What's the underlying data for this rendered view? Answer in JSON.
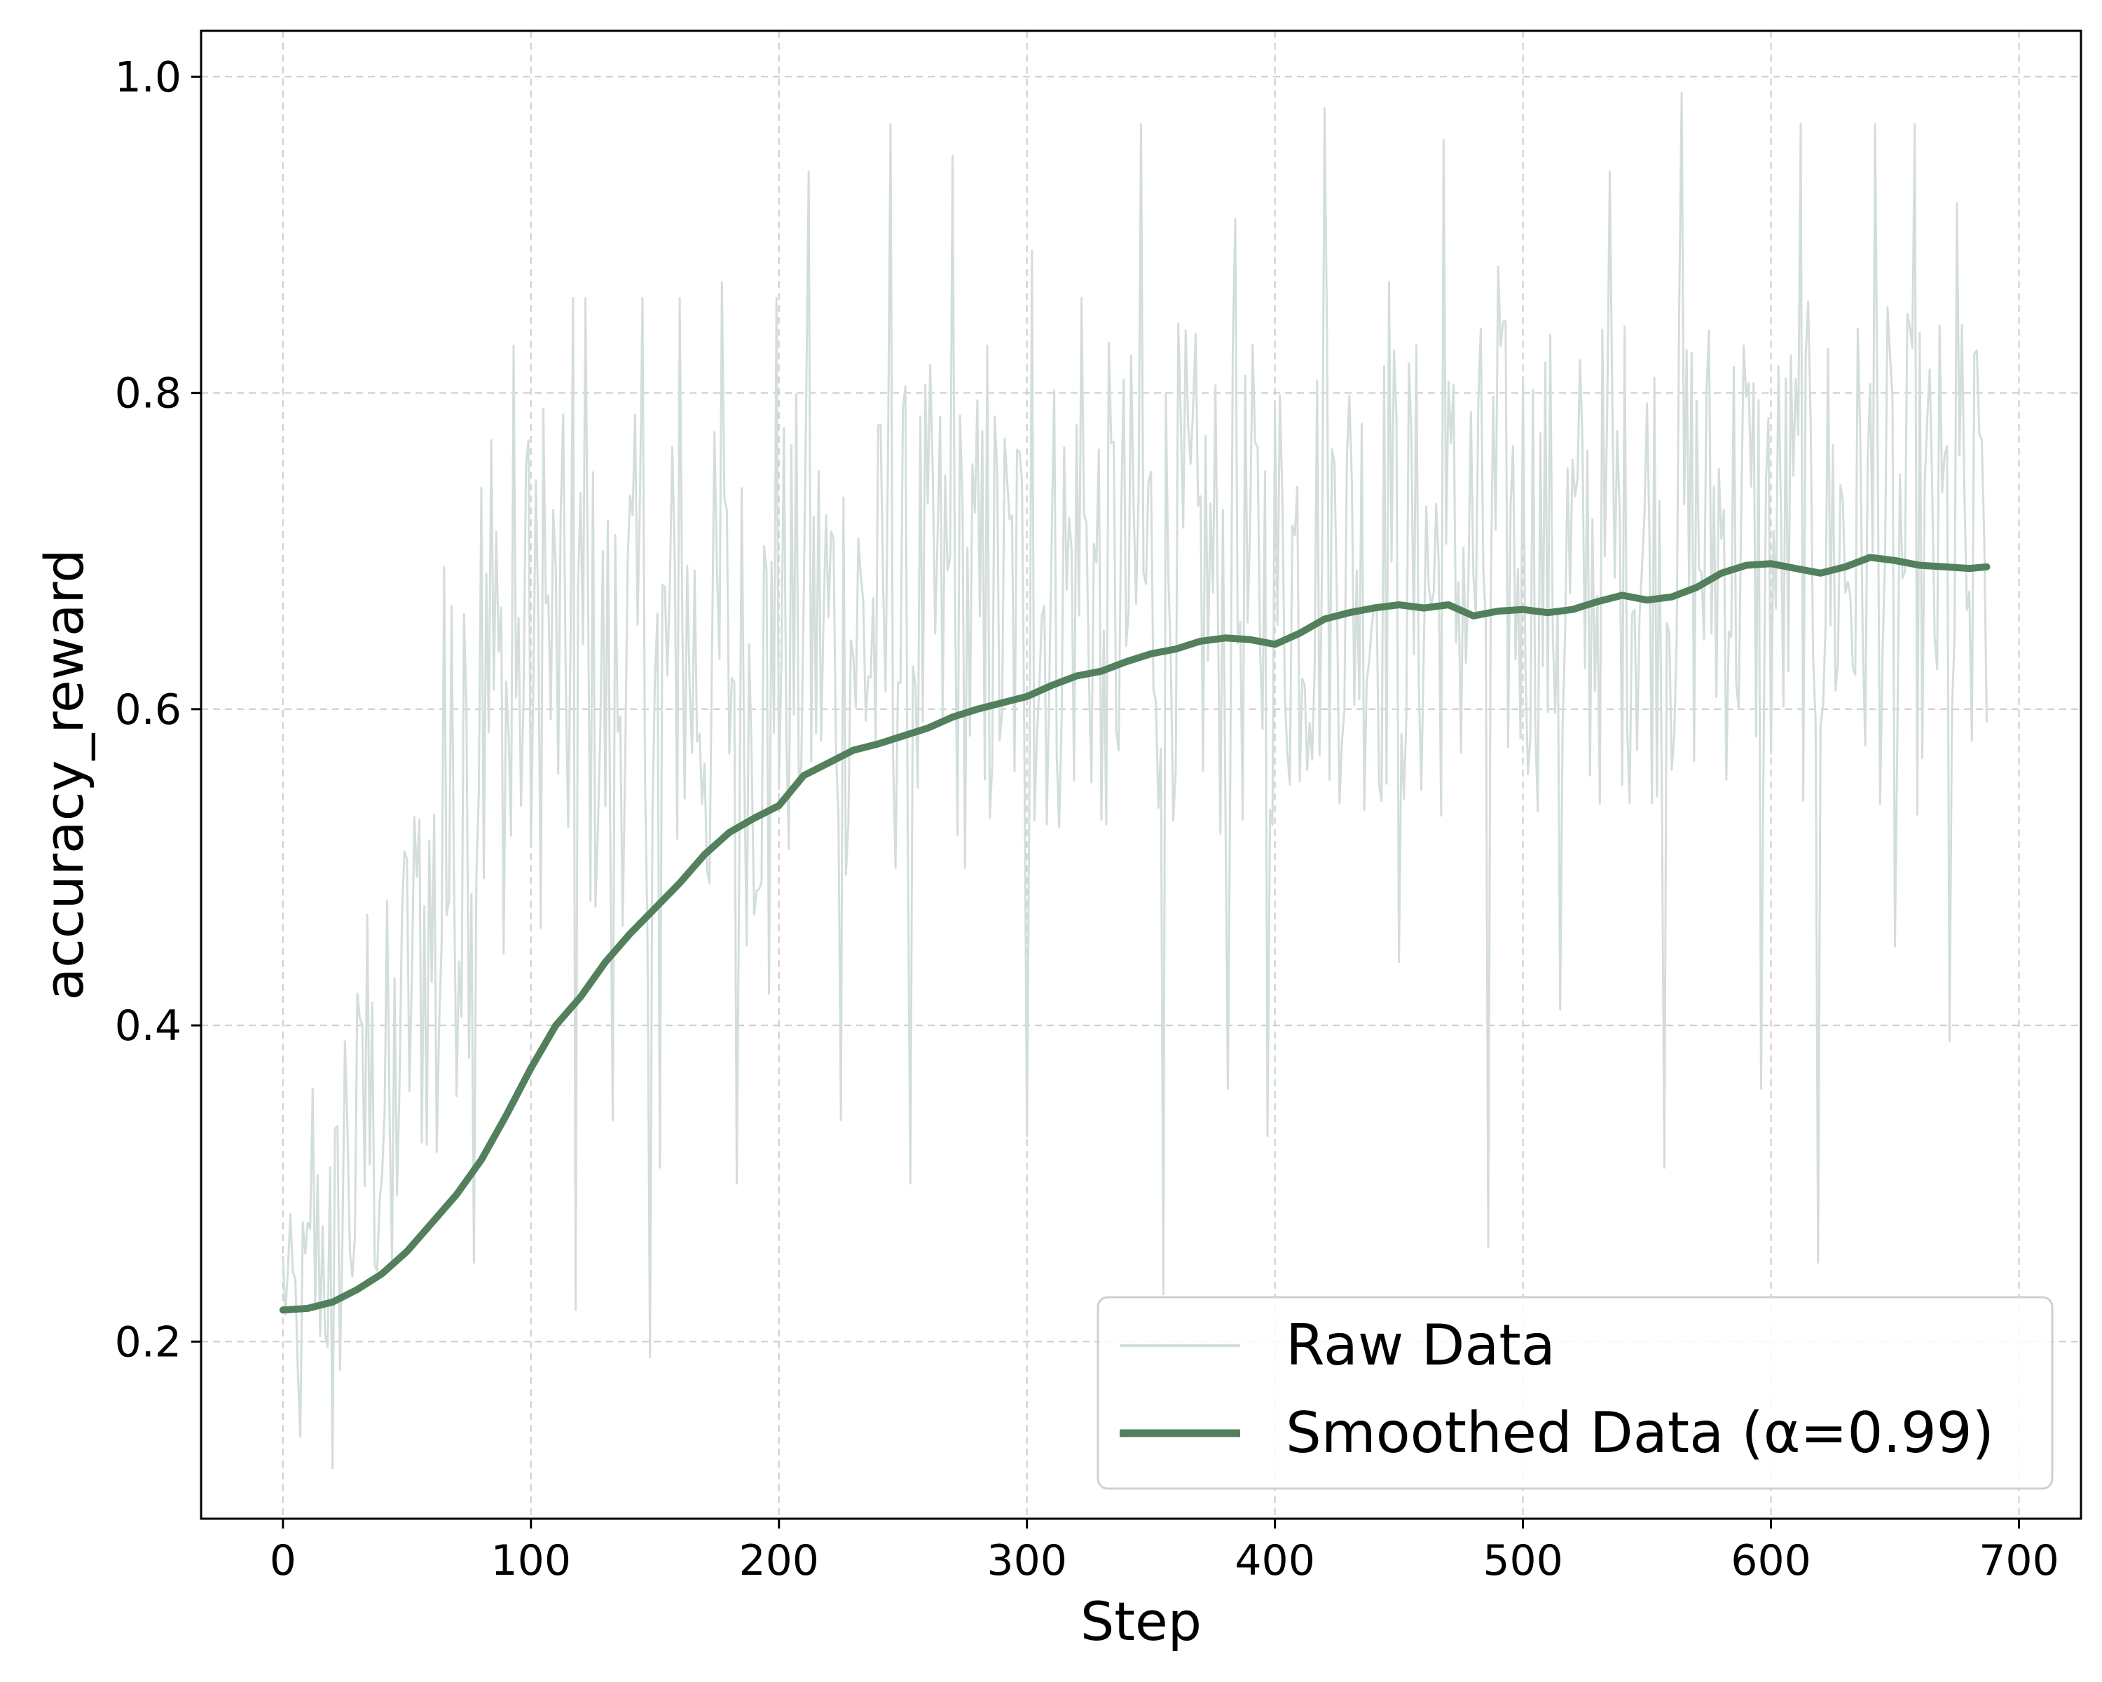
{
  "chart_data": {
    "type": "line",
    "xlabel": "Step",
    "ylabel": "accuracy_reward",
    "xlim": [
      -33,
      725
    ],
    "ylim": [
      0.088,
      1.029
    ],
    "xticks": [
      0,
      100,
      200,
      300,
      400,
      500,
      600,
      700
    ],
    "xtick_labels": [
      "0",
      "100",
      "200",
      "300",
      "400",
      "500",
      "600",
      "700"
    ],
    "yticks": [
      0.2,
      0.4,
      0.6,
      0.8,
      1.0
    ],
    "ytick_labels": [
      "0.2",
      "0.4",
      "0.6",
      "0.8",
      "1.0"
    ],
    "grid": true,
    "legend_position": "lower-right",
    "colors": {
      "raw": "#d3dedb",
      "smoothed": "#52805c",
      "grid": "#cccccc"
    },
    "series": [
      {
        "name": "Raw Data",
        "role": "raw",
        "anchors_x": [
          0,
          5,
          10,
          15,
          20,
          25,
          30,
          35,
          40,
          45,
          50,
          55,
          60,
          65,
          70,
          75,
          80,
          85,
          90,
          100,
          110,
          120,
          130,
          140,
          150,
          160,
          170,
          180,
          190,
          200,
          220,
          240,
          260,
          280,
          300,
          320,
          340,
          360,
          380,
          400,
          420,
          440,
          460,
          480,
          500,
          520,
          540,
          560,
          580,
          600,
          620,
          640,
          660,
          687
        ],
        "anchors_mean": [
          0.24,
          0.22,
          0.23,
          0.26,
          0.25,
          0.28,
          0.3,
          0.33,
          0.34,
          0.36,
          0.41,
          0.44,
          0.46,
          0.5,
          0.52,
          0.55,
          0.58,
          0.6,
          0.6,
          0.61,
          0.63,
          0.62,
          0.6,
          0.63,
          0.61,
          0.64,
          0.62,
          0.63,
          0.6,
          0.64,
          0.65,
          0.64,
          0.66,
          0.65,
          0.66,
          0.68,
          0.67,
          0.69,
          0.67,
          0.68,
          0.7,
          0.69,
          0.68,
          0.69,
          0.7,
          0.68,
          0.7,
          0.7,
          0.71,
          0.69,
          0.7,
          0.7,
          0.69,
          0.7
        ],
        "anchors_spread": [
          0.04,
          0.05,
          0.06,
          0.08,
          0.09,
          0.1,
          0.1,
          0.11,
          0.12,
          0.12,
          0.13,
          0.13,
          0.14,
          0.15,
          0.15,
          0.15,
          0.14,
          0.14,
          0.14,
          0.14,
          0.14,
          0.14,
          0.14,
          0.14,
          0.14,
          0.14,
          0.14,
          0.14,
          0.14,
          0.14,
          0.14,
          0.14,
          0.14,
          0.14,
          0.14,
          0.14,
          0.14,
          0.14,
          0.14,
          0.14,
          0.14,
          0.14,
          0.14,
          0.14,
          0.14,
          0.14,
          0.14,
          0.14,
          0.14,
          0.14,
          0.14,
          0.14,
          0.14,
          0.14
        ],
        "extremes": [
          [
            7,
            0.14
          ],
          [
            12,
            0.36
          ],
          [
            20,
            0.12
          ],
          [
            25,
            0.39
          ],
          [
            30,
            0.42
          ],
          [
            34,
            0.47
          ],
          [
            44,
            0.25
          ],
          [
            48,
            0.47
          ],
          [
            55,
            0.53
          ],
          [
            62,
            0.32
          ],
          [
            65,
            0.69
          ],
          [
            73,
            0.66
          ],
          [
            77,
            0.25
          ],
          [
            80,
            0.74
          ],
          [
            84,
            0.77
          ],
          [
            92,
            0.52
          ],
          [
            93,
            0.83
          ],
          [
            99,
            0.77
          ],
          [
            105,
            0.79
          ],
          [
            117,
            0.86
          ],
          [
            118,
            0.22
          ],
          [
            122,
            0.86
          ],
          [
            133,
            0.34
          ],
          [
            145,
            0.86
          ],
          [
            148,
            0.19
          ],
          [
            152,
            0.31
          ],
          [
            160,
            0.86
          ],
          [
            172,
            0.49
          ],
          [
            177,
            0.87
          ],
          [
            183,
            0.3
          ],
          [
            196,
            0.42
          ],
          [
            199,
            0.86
          ],
          [
            212,
            0.94
          ],
          [
            225,
            0.34
          ],
          [
            245,
            0.97
          ],
          [
            253,
            0.3
          ],
          [
            270,
            0.95
          ],
          [
            284,
            0.83
          ],
          [
            300,
            0.33
          ],
          [
            302,
            0.89
          ],
          [
            322,
            0.86
          ],
          [
            330,
            0.53
          ],
          [
            346,
            0.97
          ],
          [
            355,
            0.23
          ],
          [
            381,
            0.36
          ],
          [
            384,
            0.91
          ],
          [
            397,
            0.33
          ],
          [
            420,
            0.98
          ],
          [
            446,
            0.87
          ],
          [
            450,
            0.44
          ],
          [
            468,
            0.96
          ],
          [
            486,
            0.26
          ],
          [
            490,
            0.88
          ],
          [
            515,
            0.41
          ],
          [
            535,
            0.94
          ],
          [
            557,
            0.31
          ],
          [
            564,
            0.99
          ],
          [
            589,
            0.83
          ],
          [
            596,
            0.36
          ],
          [
            612,
            0.97
          ],
          [
            619,
            0.25
          ],
          [
            642,
            0.97
          ],
          [
            650,
            0.45
          ],
          [
            658,
            0.97
          ],
          [
            672,
            0.39
          ],
          [
            675,
            0.92
          ],
          [
            681,
            0.58
          ],
          [
            685,
            0.77
          ]
        ]
      },
      {
        "name": "Smoothed Data (α=0.99)",
        "role": "smoothed",
        "x": [
          0,
          10,
          20,
          30,
          40,
          50,
          60,
          70,
          80,
          90,
          100,
          110,
          120,
          130,
          140,
          150,
          160,
          170,
          180,
          190,
          200,
          210,
          220,
          230,
          240,
          250,
          260,
          270,
          280,
          290,
          300,
          310,
          320,
          330,
          340,
          350,
          360,
          370,
          380,
          390,
          400,
          410,
          420,
          430,
          440,
          450,
          460,
          470,
          480,
          490,
          500,
          510,
          520,
          530,
          540,
          550,
          560,
          570,
          580,
          590,
          600,
          610,
          620,
          630,
          640,
          650,
          660,
          670,
          680,
          687
        ],
        "y": [
          0.22,
          0.221,
          0.225,
          0.233,
          0.243,
          0.257,
          0.275,
          0.293,
          0.315,
          0.343,
          0.373,
          0.4,
          0.418,
          0.44,
          0.458,
          0.474,
          0.49,
          0.508,
          0.522,
          0.531,
          0.539,
          0.558,
          0.566,
          0.574,
          0.578,
          0.583,
          0.588,
          0.595,
          0.6,
          0.604,
          0.608,
          0.615,
          0.621,
          0.624,
          0.63,
          0.635,
          0.638,
          0.643,
          0.645,
          0.644,
          0.641,
          0.648,
          0.657,
          0.661,
          0.664,
          0.666,
          0.664,
          0.666,
          0.659,
          0.662,
          0.663,
          0.661,
          0.663,
          0.668,
          0.672,
          0.669,
          0.671,
          0.677,
          0.686,
          0.691,
          0.692,
          0.689,
          0.686,
          0.69,
          0.696,
          0.694,
          0.691,
          0.69,
          0.689,
          0.69
        ]
      }
    ]
  }
}
